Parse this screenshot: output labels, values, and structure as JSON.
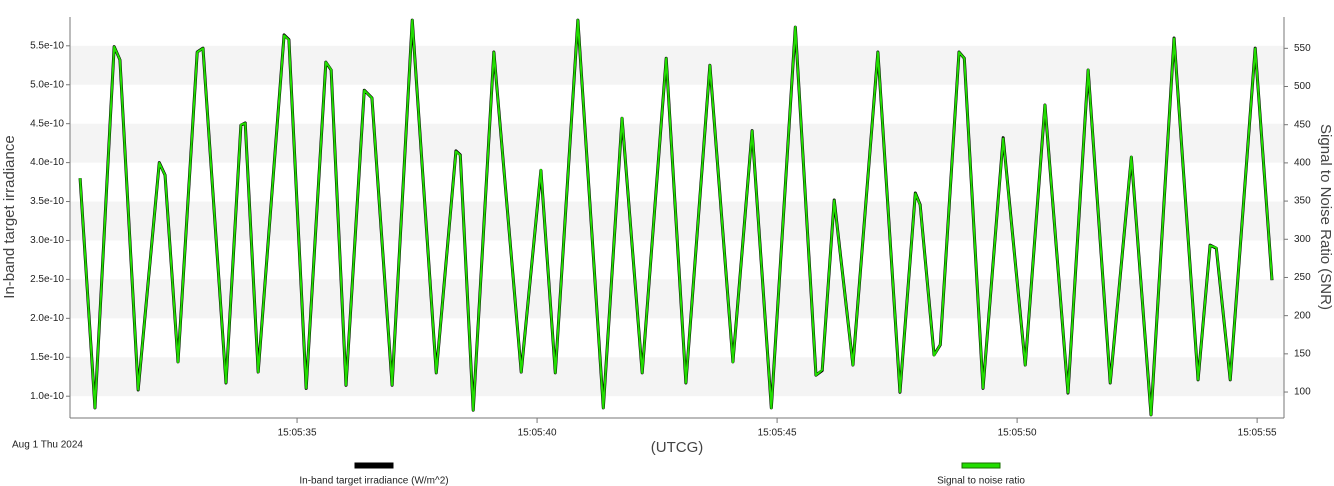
{
  "chart_data": {
    "type": "line",
    "date_label": "Aug 1 Thu 2024",
    "xlabel": "(UTCG)",
    "ylabel": "In-band target irradiance",
    "y2label": "Signal to Noise Ratio (SNR)",
    "grid": true,
    "x": [
      30.48,
      30.79,
      31.19,
      31.31,
      31.69,
      32.13,
      32.25,
      32.52,
      32.92,
      33.04,
      33.52,
      33.83,
      33.92,
      34.19,
      34.73,
      34.83,
      35.19,
      35.6,
      35.71,
      36.02,
      36.4,
      36.56,
      36.98,
      37.4,
      37.9,
      38.31,
      38.4,
      38.67,
      39.1,
      39.67,
      40.08,
      40.38,
      40.85,
      41.38,
      41.77,
      42.19,
      42.69,
      43.1,
      43.6,
      44.08,
      44.48,
      44.88,
      45.38,
      45.81,
      45.94,
      46.19,
      46.58,
      47.1,
      47.56,
      47.88,
      47.98,
      48.27,
      48.4,
      48.79,
      48.9,
      49.29,
      49.71,
      50.17,
      50.58,
      51.06,
      51.48,
      51.94,
      52.38,
      52.79,
      53.27,
      53.77,
      54.02,
      54.15,
      54.44,
      54.96,
      55.31
    ],
    "xlim": [
      30.27,
      55.56
    ],
    "xticks": [
      {
        "value": 35,
        "label": "15:05:35"
      },
      {
        "value": 40,
        "label": "15:05:40"
      },
      {
        "value": 45,
        "label": "15:05:45"
      },
      {
        "value": 50,
        "label": "15:05:50"
      },
      {
        "value": 55,
        "label": "15:05:55"
      }
    ],
    "ylim": [
      7.2e-11,
      5.87e-10
    ],
    "yticks": [
      {
        "value": 1e-10,
        "label": "1.0e-10"
      },
      {
        "value": 1.5e-10,
        "label": "1.5e-10"
      },
      {
        "value": 2e-10,
        "label": "2.0e-10"
      },
      {
        "value": 2.5e-10,
        "label": "2.5e-10"
      },
      {
        "value": 3e-10,
        "label": "3.0e-10"
      },
      {
        "value": 3.5e-10,
        "label": "3.5e-10"
      },
      {
        "value": 4e-10,
        "label": "4.0e-10"
      },
      {
        "value": 4.5e-10,
        "label": "4.5e-10"
      },
      {
        "value": 5e-10,
        "label": "5.0e-10"
      },
      {
        "value": 5.5e-10,
        "label": "5.5e-10"
      }
    ],
    "y2lim": [
      66,
      591
    ],
    "y2ticks": [
      100,
      150,
      200,
      250,
      300,
      350,
      400,
      450,
      500,
      550
    ],
    "series": [
      {
        "name": "In-band target irradiance (W/m^2)",
        "color": "#000000",
        "axis": "y",
        "values": [
          3.8e-10,
          8.5e-11,
          5.49e-10,
          5.32e-10,
          1.08e-10,
          4e-10,
          3.84e-10,
          1.44e-10,
          5.42e-10,
          5.47e-10,
          1.17e-10,
          4.48e-10,
          4.51e-10,
          1.31e-10,
          5.64e-10,
          5.58e-10,
          1.1e-10,
          5.29e-10,
          5.19e-10,
          1.14e-10,
          4.93e-10,
          4.83e-10,
          1.14e-10,
          5.83e-10,
          1.3e-10,
          4.15e-10,
          4.1e-10,
          8.2e-11,
          5.42e-10,
          1.31e-10,
          3.9e-10,
          1.3e-10,
          5.83e-10,
          8.5e-11,
          4.57e-10,
          1.3e-10,
          5.34e-10,
          1.17e-10,
          5.25e-10,
          1.44e-10,
          4.41e-10,
          8.5e-11,
          5.74e-10,
          1.27e-10,
          1.33e-10,
          3.52e-10,
          1.4e-10,
          5.42e-10,
          1.05e-10,
          3.61e-10,
          3.46e-10,
          1.53e-10,
          1.66e-10,
          5.42e-10,
          5.34e-10,
          1.1e-10,
          4.32e-10,
          1.4e-10,
          4.74e-10,
          1.04e-10,
          5.19e-10,
          1.17e-10,
          4.07e-10,
          7.6e-11,
          5.6e-10,
          1.21e-10,
          2.94e-10,
          2.9e-10,
          1.21e-10,
          5.47e-10,
          2.49e-10
        ]
      },
      {
        "name": "Signal to noise ratio",
        "color": "#22dd00",
        "axis": "y2",
        "values": [
          380,
          79,
          552,
          535,
          103,
          400,
          384,
          139,
          545,
          550,
          112,
          450,
          452,
          126,
          567,
          561,
          105,
          532,
          522,
          109,
          495,
          485,
          109,
          587,
          125,
          415,
          410,
          76,
          545,
          126,
          391,
          125,
          587,
          79,
          459,
          125,
          537,
          112,
          528,
          139,
          442,
          79,
          578,
          122,
          129,
          351,
          135,
          545,
          100,
          360,
          345,
          148,
          162,
          545,
          537,
          105,
          432,
          135,
          476,
          99,
          522,
          112,
          408,
          70,
          563,
          116,
          292,
          289,
          116,
          550,
          247
        ]
      }
    ]
  }
}
